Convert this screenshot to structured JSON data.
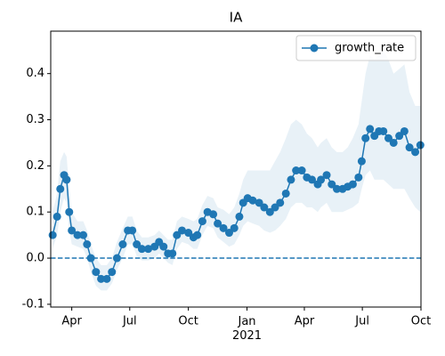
{
  "chart_data": {
    "type": "line",
    "title": "IA",
    "x": [
      -30,
      -23,
      -18,
      -12,
      -8,
      -4,
      0,
      9,
      18,
      24,
      30,
      38,
      46,
      55,
      63,
      71,
      80,
      88,
      95,
      102,
      110,
      120,
      130,
      137,
      144,
      151,
      158,
      165,
      173,
      183,
      191,
      197,
      205,
      213,
      222,
      229,
      238,
      247,
      255,
      263,
      269,
      276,
      284,
      294,
      302,
      311,
      319,
      327,
      336,
      344,
      352,
      361,
      369,
      377,
      386,
      391,
      400,
      408,
      416,
      425,
      433,
      441,
      450,
      455,
      461,
      468,
      475,
      482,
      489,
      497,
      505,
      514,
      522,
      530,
      539,
      547
    ],
    "series": [
      {
        "name": "growth_rate",
        "color": "#1f77b4",
        "values": [
          0.05,
          0.09,
          0.15,
          0.18,
          0.17,
          0.1,
          0.06,
          0.05,
          0.05,
          0.03,
          0.0,
          -0.03,
          -0.045,
          -0.045,
          -0.03,
          0.0,
          0.03,
          0.06,
          0.06,
          0.03,
          0.02,
          0.02,
          0.025,
          0.035,
          0.025,
          0.01,
          0.01,
          0.05,
          0.06,
          0.055,
          0.045,
          0.05,
          0.08,
          0.1,
          0.095,
          0.075,
          0.065,
          0.055,
          0.065,
          0.09,
          0.12,
          0.13,
          0.125,
          0.12,
          0.11,
          0.1,
          0.11,
          0.12,
          0.14,
          0.17,
          0.19,
          0.19,
          0.175,
          0.17,
          0.16,
          0.17,
          0.18,
          0.16,
          0.15,
          0.15,
          0.155,
          0.16,
          0.175,
          0.21,
          0.26,
          0.28,
          0.265,
          0.275,
          0.275,
          0.26,
          0.25,
          0.265,
          0.275,
          0.24,
          0.23,
          0.245
        ]
      }
    ],
    "band": {
      "color": "#1f77b4",
      "upper": [
        0.1,
        0.14,
        0.21,
        0.23,
        0.22,
        0.15,
        0.1,
        0.08,
        0.08,
        0.06,
        0.03,
        0.0,
        -0.015,
        -0.015,
        0.0,
        0.035,
        0.065,
        0.09,
        0.09,
        0.06,
        0.045,
        0.045,
        0.05,
        0.06,
        0.05,
        0.04,
        0.04,
        0.08,
        0.09,
        0.085,
        0.08,
        0.085,
        0.115,
        0.135,
        0.13,
        0.11,
        0.105,
        0.095,
        0.11,
        0.14,
        0.17,
        0.19,
        0.19,
        0.19,
        0.19,
        0.19,
        0.21,
        0.23,
        0.26,
        0.29,
        0.3,
        0.29,
        0.27,
        0.26,
        0.24,
        0.25,
        0.26,
        0.24,
        0.23,
        0.23,
        0.24,
        0.26,
        0.29,
        0.34,
        0.4,
        0.44,
        0.43,
        0.44,
        0.45,
        0.43,
        0.4,
        0.41,
        0.42,
        0.36,
        0.33,
        0.33
      ],
      "lower": [
        0.02,
        0.05,
        0.1,
        0.13,
        0.12,
        0.06,
        0.03,
        0.025,
        0.02,
        0.0,
        -0.03,
        -0.06,
        -0.07,
        -0.07,
        -0.055,
        -0.025,
        0.0,
        0.03,
        0.03,
        0.005,
        -0.005,
        -0.005,
        0.0,
        0.01,
        0.0,
        -0.01,
        -0.015,
        0.02,
        0.035,
        0.03,
        0.02,
        0.02,
        0.05,
        0.07,
        0.065,
        0.045,
        0.035,
        0.025,
        0.03,
        0.05,
        0.07,
        0.08,
        0.075,
        0.07,
        0.06,
        0.055,
        0.06,
        0.07,
        0.085,
        0.11,
        0.12,
        0.12,
        0.11,
        0.11,
        0.1,
        0.11,
        0.12,
        0.1,
        0.1,
        0.1,
        0.105,
        0.11,
        0.12,
        0.15,
        0.18,
        0.19,
        0.17,
        0.17,
        0.17,
        0.16,
        0.15,
        0.15,
        0.15,
        0.13,
        0.11,
        0.1
      ]
    },
    "hline": {
      "value": 0,
      "color": "#1f77b4",
      "style": "dashed"
    },
    "xlim": [
      -33,
      548
    ],
    "ylim": [
      -0.106,
      0.492
    ],
    "xticks": [
      {
        "value": 0,
        "label": "Apr"
      },
      {
        "value": 91,
        "label": "Jul"
      },
      {
        "value": 183,
        "label": "Oct"
      },
      {
        "value": 275,
        "label": "Jan\n2021"
      },
      {
        "value": 365,
        "label": "Apr"
      },
      {
        "value": 456,
        "label": "Jul"
      },
      {
        "value": 548,
        "label": "Oct"
      }
    ],
    "yticks": [
      -0.1,
      {
        "value": 0,
        "label": "0.0"
      },
      0.1,
      0.2,
      0.3,
      0.4
    ],
    "legend": "upper right",
    "grid": false
  }
}
